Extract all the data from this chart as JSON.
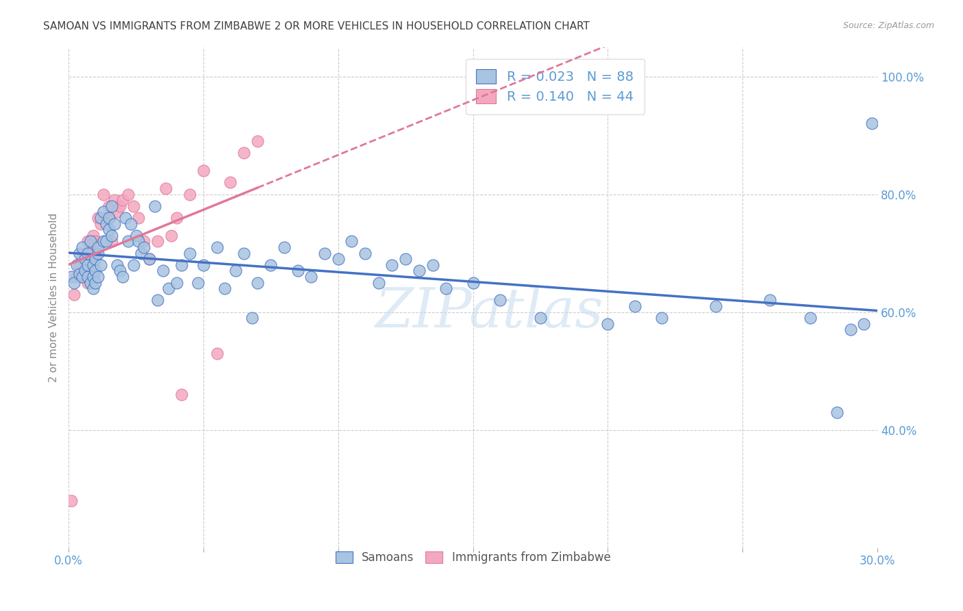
{
  "title": "SAMOAN VS IMMIGRANTS FROM ZIMBABWE 2 OR MORE VEHICLES IN HOUSEHOLD CORRELATION CHART",
  "source": "Source: ZipAtlas.com",
  "ylabel": "2 or more Vehicles in Household",
  "xmin": 0.0,
  "xmax": 0.3,
  "ymin": 0.2,
  "ymax": 1.05,
  "xticks": [
    0.0,
    0.05,
    0.1,
    0.15,
    0.2,
    0.25,
    0.3
  ],
  "xtick_labels": [
    "0.0%",
    "",
    "",
    "",
    "",
    "",
    "30.0%"
  ],
  "ytick_labels_right": [
    "40.0%",
    "60.0%",
    "80.0%",
    "100.0%"
  ],
  "ytick_vals_right": [
    0.4,
    0.6,
    0.8,
    1.0
  ],
  "samoans_R": 0.023,
  "samoans_N": 88,
  "zimbabwe_R": 0.14,
  "zimbabwe_N": 44,
  "samoans_color": "#a8c4e0",
  "zimbabwe_color": "#f4a8c0",
  "samoans_line_color": "#4472c4",
  "zimbabwe_line_color": "#e07898",
  "title_color": "#404040",
  "axis_label_color": "#5b9bd5",
  "watermark_text": "ZIPatlas",
  "watermark_color": "#c8dff0",
  "background_color": "#ffffff",
  "samoans_x": [
    0.001,
    0.002,
    0.003,
    0.004,
    0.004,
    0.005,
    0.005,
    0.006,
    0.006,
    0.007,
    0.007,
    0.007,
    0.008,
    0.008,
    0.009,
    0.009,
    0.009,
    0.01,
    0.01,
    0.01,
    0.011,
    0.011,
    0.011,
    0.012,
    0.012,
    0.013,
    0.013,
    0.014,
    0.014,
    0.015,
    0.015,
    0.016,
    0.016,
    0.017,
    0.018,
    0.019,
    0.02,
    0.021,
    0.022,
    0.023,
    0.024,
    0.025,
    0.026,
    0.027,
    0.028,
    0.03,
    0.032,
    0.033,
    0.035,
    0.037,
    0.04,
    0.042,
    0.045,
    0.048,
    0.05,
    0.055,
    0.058,
    0.062,
    0.065,
    0.068,
    0.07,
    0.075,
    0.08,
    0.085,
    0.09,
    0.095,
    0.1,
    0.105,
    0.11,
    0.115,
    0.12,
    0.125,
    0.13,
    0.135,
    0.14,
    0.15,
    0.16,
    0.175,
    0.2,
    0.21,
    0.22,
    0.24,
    0.26,
    0.275,
    0.285,
    0.29,
    0.295,
    0.298
  ],
  "samoans_y": [
    0.66,
    0.65,
    0.68,
    0.665,
    0.7,
    0.71,
    0.66,
    0.67,
    0.69,
    0.66,
    0.68,
    0.7,
    0.65,
    0.72,
    0.64,
    0.66,
    0.68,
    0.67,
    0.69,
    0.65,
    0.66,
    0.7,
    0.71,
    0.68,
    0.76,
    0.72,
    0.77,
    0.75,
    0.72,
    0.74,
    0.76,
    0.73,
    0.78,
    0.75,
    0.68,
    0.67,
    0.66,
    0.76,
    0.72,
    0.75,
    0.68,
    0.73,
    0.72,
    0.7,
    0.71,
    0.69,
    0.78,
    0.62,
    0.67,
    0.64,
    0.65,
    0.68,
    0.7,
    0.65,
    0.68,
    0.71,
    0.64,
    0.67,
    0.7,
    0.59,
    0.65,
    0.68,
    0.71,
    0.67,
    0.66,
    0.7,
    0.69,
    0.72,
    0.7,
    0.65,
    0.68,
    0.69,
    0.67,
    0.68,
    0.64,
    0.65,
    0.62,
    0.59,
    0.58,
    0.61,
    0.59,
    0.61,
    0.62,
    0.59,
    0.43,
    0.57,
    0.58,
    0.92
  ],
  "zimbabwe_x": [
    0.001,
    0.002,
    0.003,
    0.004,
    0.005,
    0.005,
    0.006,
    0.006,
    0.007,
    0.007,
    0.008,
    0.008,
    0.009,
    0.009,
    0.01,
    0.01,
    0.011,
    0.012,
    0.013,
    0.014,
    0.015,
    0.015,
    0.016,
    0.017,
    0.018,
    0.019,
    0.02,
    0.022,
    0.024,
    0.026,
    0.028,
    0.03,
    0.033,
    0.036,
    0.038,
    0.04,
    0.042,
    0.045,
    0.05,
    0.055,
    0.06,
    0.065,
    0.07,
    0.165
  ],
  "zimbabwe_y": [
    0.28,
    0.63,
    0.66,
    0.68,
    0.66,
    0.69,
    0.66,
    0.7,
    0.65,
    0.72,
    0.68,
    0.7,
    0.72,
    0.73,
    0.7,
    0.72,
    0.76,
    0.75,
    0.8,
    0.76,
    0.78,
    0.76,
    0.72,
    0.79,
    0.77,
    0.78,
    0.79,
    0.8,
    0.78,
    0.76,
    0.72,
    0.69,
    0.72,
    0.81,
    0.73,
    0.76,
    0.46,
    0.8,
    0.84,
    0.53,
    0.82,
    0.87,
    0.89,
    0.97
  ],
  "zim_trend_solid_xmax": 0.07
}
